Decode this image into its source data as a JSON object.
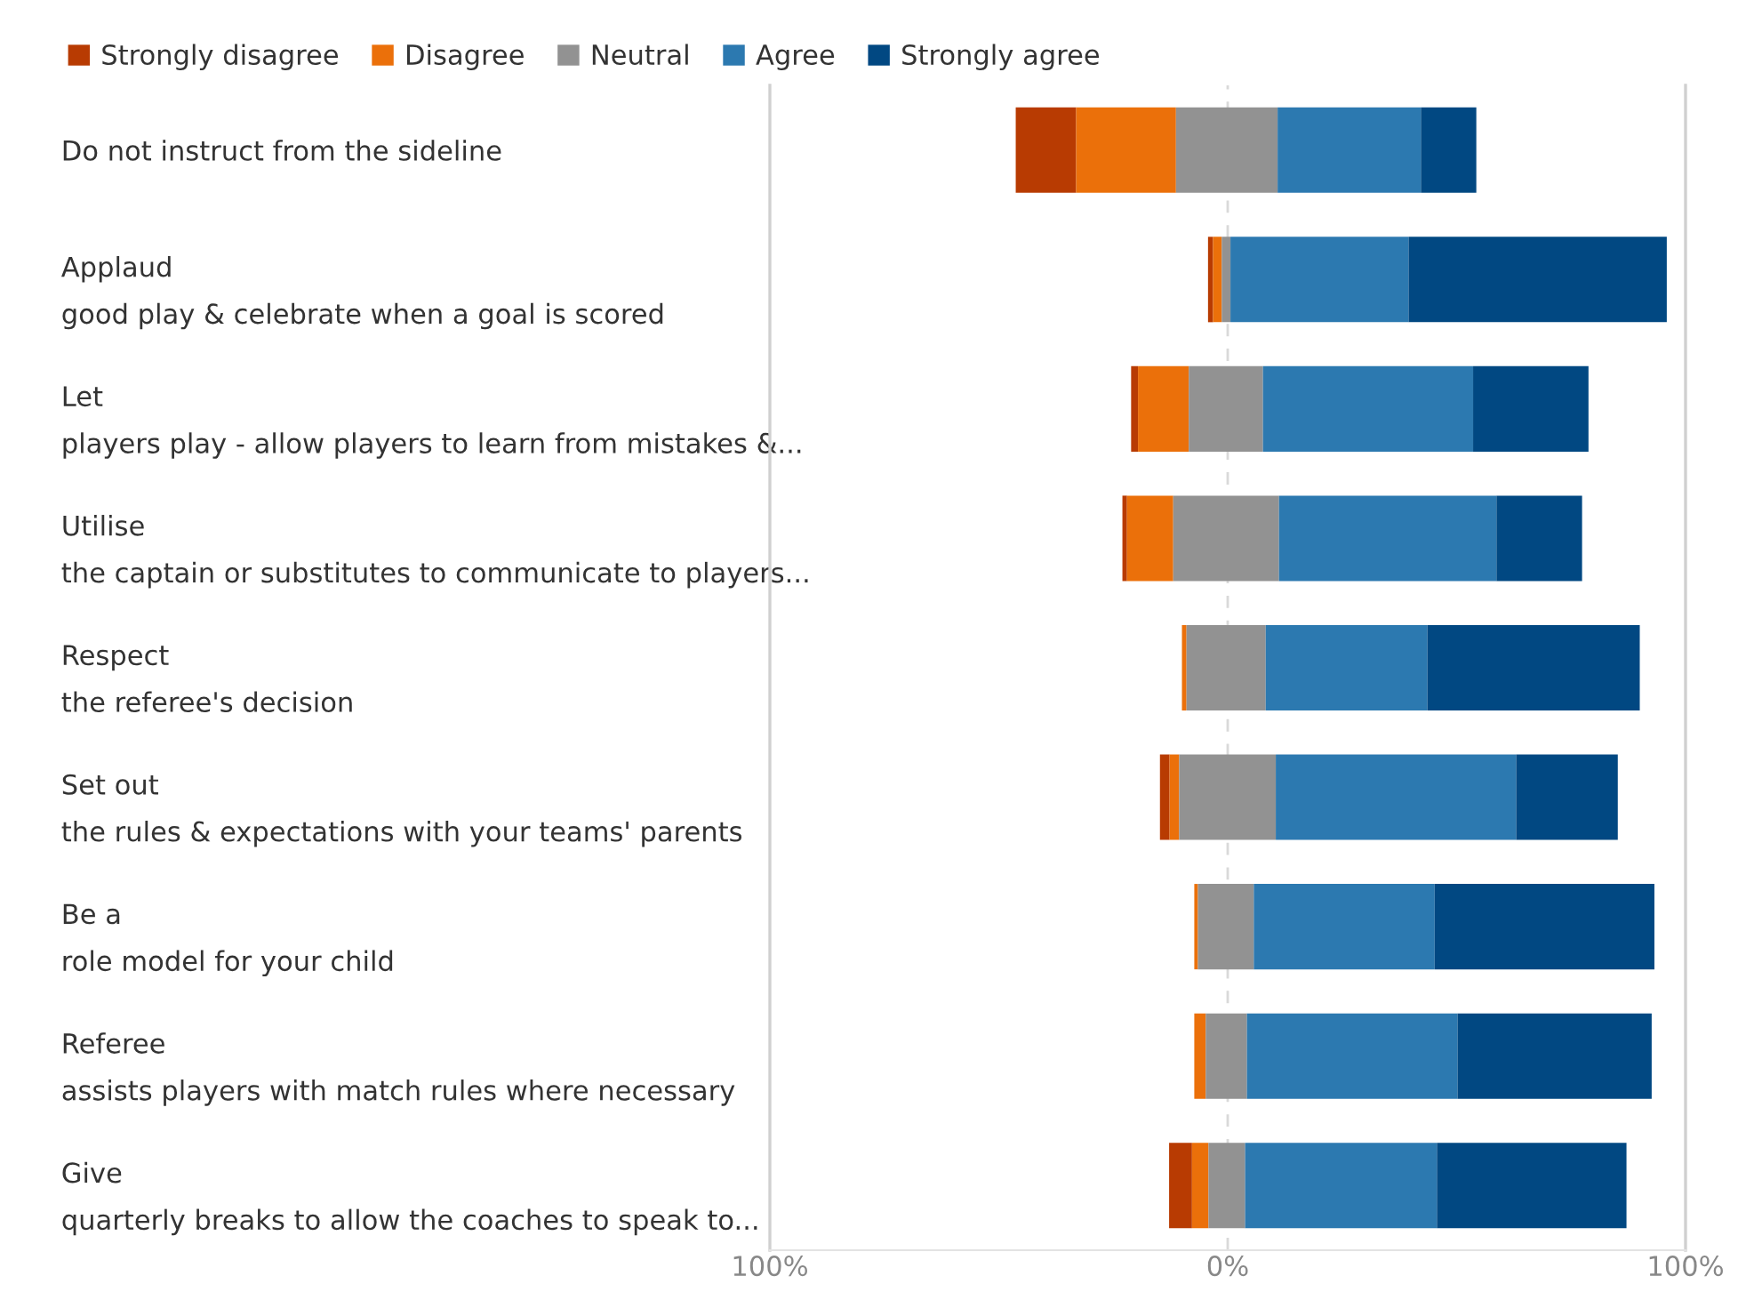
{
  "chart_data": {
    "type": "bar",
    "orientation": "horizontal",
    "categories": [
      "Do not instruct from the sideline",
      "Applaud\ngood play & celebrate when a goal is scored",
      "Let\nplayers play - allow players to learn from mistakes &...",
      "Utilise\nthe captain or substitutes to communicate to players...",
      "Respect\nthe referee's decision",
      "Set out\nthe rules & expectations with your teams' parents",
      "Be a\nrole model for your child",
      "Referee\nassists players with match rules where necessary",
      "Give\nquarterly breaks to allow the coaches to speak to..."
    ],
    "series": [
      {
        "name": "Strongly disagree",
        "color": "#b83b02",
        "base": [
          -46.3,
          -4.3,
          -21.1,
          -23.0,
          null,
          -14.8,
          null,
          null,
          -12.8
        ],
        "values": [
          13.2,
          1.1,
          1.5,
          1.0,
          null,
          2.1,
          null,
          null,
          5.0
        ]
      },
      {
        "name": "Disagree",
        "color": "#eb700a",
        "base": [
          -33.1,
          -3.2,
          -19.6,
          -22.0,
          -10.0,
          -12.7,
          -7.3,
          -7.3,
          -7.8
        ],
        "values": [
          21.8,
          1.9,
          11.1,
          10.1,
          1.0,
          2.1,
          0.8,
          2.5,
          3.6
        ]
      },
      {
        "name": "Neutral",
        "color": "#929292",
        "base": [
          -11.3,
          -1.3,
          -8.5,
          -11.9,
          -9.0,
          -10.6,
          -6.5,
          -4.8,
          -4.2
        ],
        "values": [
          22.2,
          1.9,
          16.2,
          23.1,
          17.3,
          21.1,
          12.2,
          9.0,
          8.0
        ]
      },
      {
        "name": "Agree",
        "color": "#2c79b0",
        "base": [
          10.9,
          0.6,
          7.7,
          11.2,
          8.3,
          10.5,
          5.7,
          4.2,
          3.8
        ],
        "values": [
          31.3,
          38.9,
          45.9,
          47.5,
          35.3,
          52.5,
          39.5,
          46.0,
          41.9
        ]
      },
      {
        "name": "Strongly agree",
        "color": "#014882",
        "base": [
          42.2,
          39.5,
          53.6,
          58.7,
          43.6,
          63.0,
          45.2,
          50.2,
          45.7
        ],
        "values": [
          12.1,
          56.4,
          25.2,
          18.7,
          46.4,
          22.2,
          48.0,
          42.4,
          41.4
        ]
      }
    ],
    "xlim": [
      -100,
      100
    ],
    "xticks": [
      {
        "value": -100,
        "label": "100%"
      },
      {
        "value": 0,
        "label": "0%"
      },
      {
        "value": 100,
        "label": "100%"
      }
    ],
    "ref_lines": [
      {
        "axis": "x",
        "value": 0,
        "label": null,
        "color": "#d9d9d9",
        "line_style": "dashed"
      }
    ],
    "legend": "top left"
  }
}
